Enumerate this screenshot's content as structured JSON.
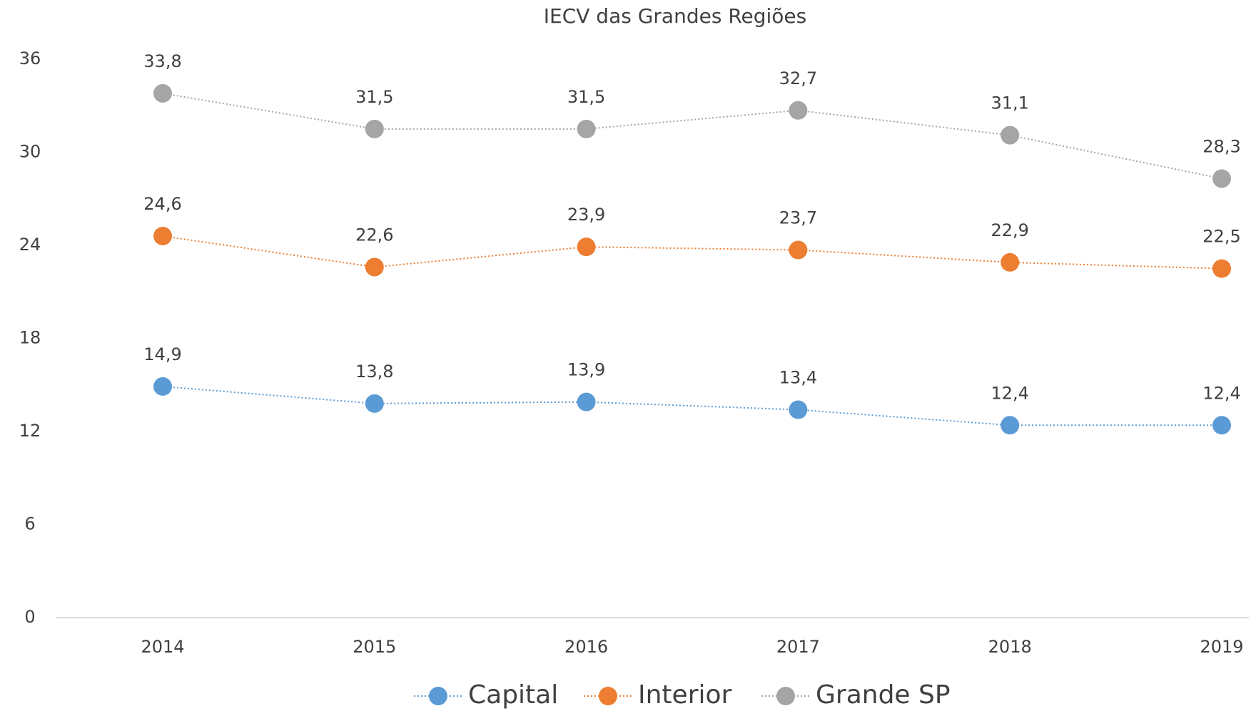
{
  "chart_data": {
    "type": "line",
    "title": "IECV das Grandes Regiões",
    "categories": [
      "2014",
      "2015",
      "2016",
      "2017",
      "2018",
      "2019"
    ],
    "series": [
      {
        "name": "Capital",
        "color": "#5b9bd5",
        "values": [
          14.9,
          13.8,
          13.9,
          13.4,
          12.4,
          12.4
        ],
        "value_labels": [
          "14,9",
          "13,8",
          "13,9",
          "13,4",
          "12,4",
          "12,4"
        ]
      },
      {
        "name": "Interior",
        "color": "#ed7d31",
        "values": [
          24.6,
          22.6,
          23.9,
          23.7,
          22.9,
          22.5
        ],
        "value_labels": [
          "24,6",
          "22,6",
          "23,9",
          "23,7",
          "22,9",
          "22,5"
        ]
      },
      {
        "name": "Grande SP",
        "color": "#a5a5a5",
        "values": [
          33.8,
          31.5,
          31.5,
          32.7,
          31.1,
          28.3
        ],
        "value_labels": [
          "33,8",
          "31,5",
          "31,5",
          "32,7",
          "31,1",
          "28,3"
        ]
      }
    ],
    "ylim": [
      0,
      36
    ],
    "yticks": [
      0,
      6,
      12,
      18,
      24,
      30,
      36
    ],
    "grid": false,
    "legend": "bottom"
  }
}
